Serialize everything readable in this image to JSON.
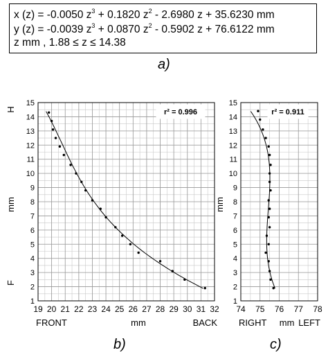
{
  "equations": {
    "x": {
      "prefix": "x (z) = -0.0050 z",
      "p1": "3",
      "mid1": " + 0.1820 z",
      "p2": "2",
      "rest": " - 2.6980 z + 35.6230   mm"
    },
    "y": {
      "prefix": "y (z) = -0.0039 z",
      "p1": "3",
      "mid1": " + 0.0870 z",
      "p2": "2",
      "rest": " - 0.5902 z + 76.6122   mm"
    },
    "range": "z  mm ,          1.88 ≤ z ≤ 14.38"
  },
  "captions": {
    "a": "a)",
    "b": "b)",
    "c": "c)"
  },
  "chart_data": [
    {
      "type": "scatter",
      "ylabel": "mm",
      "ylabel_top": "H",
      "ylabel_bottom": "F",
      "xlabel": "mm",
      "xlabel_left": "FRONT",
      "xlabel_right": "BACK",
      "xlim": [
        19,
        32
      ],
      "ylim": [
        1,
        15
      ],
      "xticks": [
        "19",
        "20",
        "21",
        "22",
        "23",
        "24",
        "25",
        "26",
        "27",
        "28",
        "29",
        "30",
        "31",
        "32"
      ],
      "yticks": [
        "1",
        "2",
        "3",
        "4",
        "5",
        "6",
        "7",
        "8",
        "9",
        "10",
        "11",
        "12",
        "13",
        "14",
        "15"
      ],
      "r2": "r² = 0.996",
      "grid": true,
      "points": [
        [
          19.8,
          14.3
        ],
        [
          20.0,
          13.7
        ],
        [
          20.1,
          13.1
        ],
        [
          20.3,
          12.5
        ],
        [
          20.6,
          11.9
        ],
        [
          20.9,
          11.3
        ],
        [
          21.4,
          10.6
        ],
        [
          21.8,
          10.0
        ],
        [
          22.2,
          9.4
        ],
        [
          22.5,
          8.8
        ],
        [
          23.0,
          8.1
        ],
        [
          23.6,
          7.5
        ],
        [
          24.0,
          6.9
        ],
        [
          24.7,
          6.2
        ],
        [
          25.2,
          5.6
        ],
        [
          25.8,
          5.0
        ],
        [
          26.4,
          4.4
        ],
        [
          28.0,
          3.8
        ],
        [
          28.9,
          3.1
        ],
        [
          29.8,
          2.5
        ],
        [
          31.3,
          1.9
        ]
      ],
      "fit": {
        "model": "cubic",
        "coeffs": [
          -0.005,
          0.182,
          -2.698,
          35.623
        ],
        "zrange": [
          1.88,
          14.38
        ]
      }
    },
    {
      "type": "scatter",
      "ylabel": "mm",
      "xlabel": "mm",
      "xlabel_left": "RIGHT",
      "xlabel_right": "LEFT",
      "xlim": [
        74,
        78
      ],
      "ylim": [
        1,
        15
      ],
      "xticks": [
        "74",
        "75",
        "76",
        "77",
        "78"
      ],
      "yticks": [
        "1",
        "2",
        "3",
        "4",
        "5",
        "6",
        "7",
        "8",
        "9",
        "10",
        "11",
        "12",
        "13",
        "14",
        "15"
      ],
      "r2": "r² = 0.911",
      "grid": true,
      "points": [
        [
          74.9,
          14.4
        ],
        [
          75.0,
          13.8
        ],
        [
          75.15,
          13.1
        ],
        [
          75.3,
          12.5
        ],
        [
          75.45,
          11.9
        ],
        [
          75.5,
          11.3
        ],
        [
          75.55,
          10.6
        ],
        [
          75.5,
          10.0
        ],
        [
          75.5,
          9.4
        ],
        [
          75.55,
          8.8
        ],
        [
          75.45,
          8.1
        ],
        [
          75.5,
          7.5
        ],
        [
          75.45,
          6.9
        ],
        [
          75.5,
          6.2
        ],
        [
          75.35,
          5.6
        ],
        [
          75.45,
          5.0
        ],
        [
          75.3,
          4.4
        ],
        [
          75.45,
          3.8
        ],
        [
          75.5,
          3.1
        ],
        [
          75.55,
          2.5
        ],
        [
          75.7,
          1.9
        ]
      ],
      "fit": {
        "model": "cubic",
        "coeffs": [
          -0.0039,
          0.087,
          -0.5902,
          76.6122
        ],
        "zrange": [
          1.88,
          14.38
        ]
      }
    }
  ]
}
